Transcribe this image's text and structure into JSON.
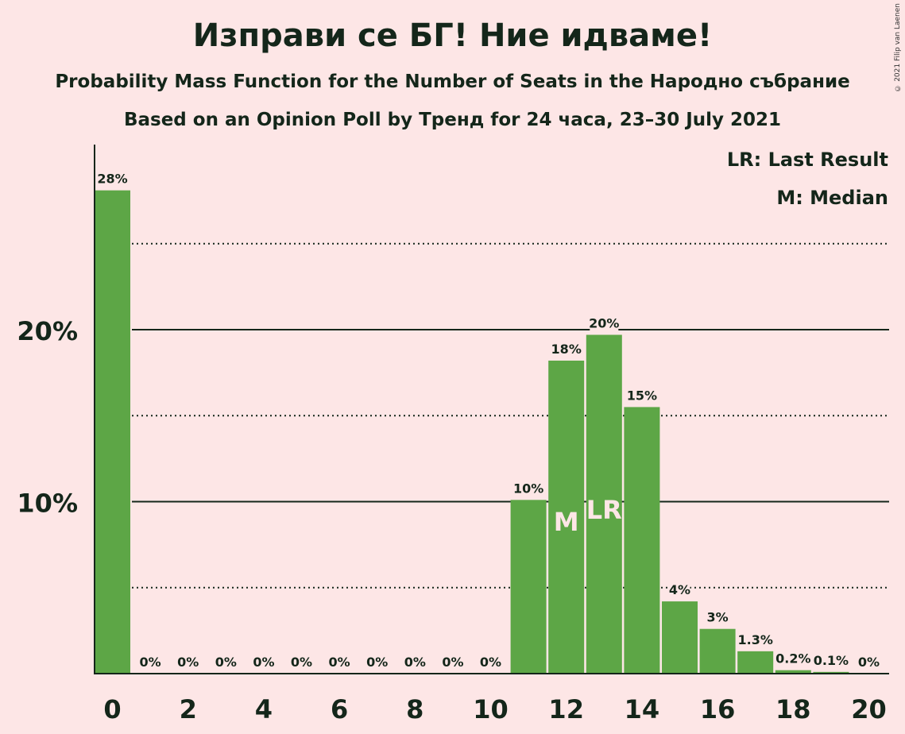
{
  "header": {
    "title": "Изправи се БГ! Ние идваме!",
    "subtitle1": "Probability Mass Function for the Number of Seats in the Народно събрание",
    "subtitle2": "Based on an Opinion Poll by Тренд for 24 часа, 23–30 July 2021",
    "copyright": "© 2021 Filip van Laenen"
  },
  "legend": {
    "last_result": "LR: Last Result",
    "median": "M: Median"
  },
  "colors": {
    "bar": "#5da646",
    "background": "#fde6e6",
    "text": "#14261a"
  },
  "chart_data": {
    "type": "bar",
    "categories": [
      0,
      1,
      2,
      3,
      4,
      5,
      6,
      7,
      8,
      9,
      10,
      11,
      12,
      13,
      14,
      15,
      16,
      17,
      18,
      19,
      20
    ],
    "values": [
      28.1,
      0,
      0,
      0,
      0,
      0,
      0,
      0,
      0,
      0,
      0,
      10.1,
      18.2,
      19.7,
      15.5,
      4.2,
      2.6,
      1.3,
      0.2,
      0.1,
      0
    ],
    "labels": [
      "28%",
      "0%",
      "0%",
      "0%",
      "0%",
      "0%",
      "0%",
      "0%",
      "0%",
      "0%",
      "0%",
      "10%",
      "18%",
      "20%",
      "15%",
      "4%",
      "3%",
      "1.3%",
      "0.2%",
      "0.1%",
      "0%"
    ],
    "x_ticks": [
      "0",
      "2",
      "4",
      "6",
      "8",
      "10",
      "12",
      "14",
      "16",
      "18",
      "20"
    ],
    "y_ticks": [
      "10%",
      "20%"
    ],
    "ylim": [
      0,
      30
    ],
    "median_seat": 12,
    "median_marker": "M",
    "last_result_seat": 13,
    "last_result_marker": "LR",
    "grid": "solid at 10% and 20%, dotted at 5%, 15% and 25%"
  }
}
